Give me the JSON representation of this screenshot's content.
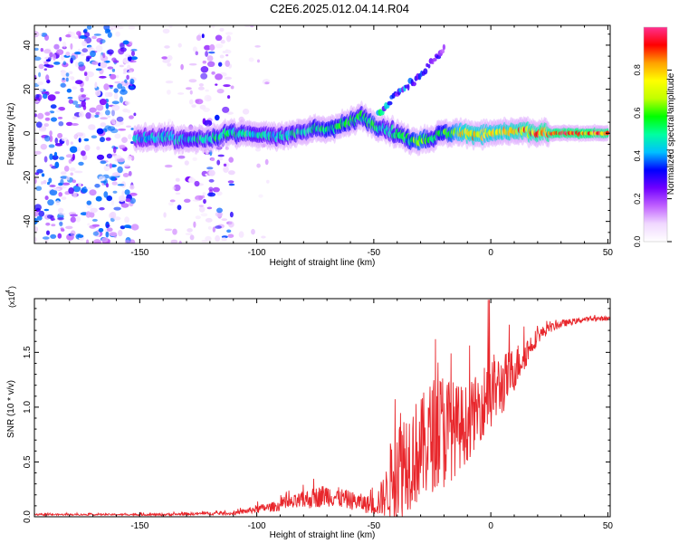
{
  "title": "C2E6.2025.012.04.14.R04",
  "colors": {
    "axis": "#000000",
    "snr_line": "#e8262b",
    "background": "#ffffff",
    "colormap": [
      "#ffffff",
      "#f0d8ff",
      "#c060ff",
      "#7000ff",
      "#0000ff",
      "#00c0ff",
      "#00ffa0",
      "#00ff00",
      "#c0ff00",
      "#ffff00",
      "#ffa000",
      "#ff0000",
      "#ff3090"
    ]
  },
  "chart_data": [
    {
      "type": "heatmap",
      "name": "spectrogram",
      "xlabel": "Height of straight line (km)",
      "ylabel": "Frequency (Hz)",
      "xlim": [
        -195,
        51
      ],
      "ylim": [
        -50,
        49
      ],
      "xticks": [
        -150,
        -100,
        -50,
        0,
        50
      ],
      "yticks": [
        -40,
        -20,
        0,
        20,
        40
      ],
      "xtick_labels": [
        "-150",
        "-100",
        "-50",
        "0",
        "50"
      ],
      "ytick_labels": [
        "-40",
        "-20",
        "0",
        "20",
        "40"
      ],
      "colorbar": {
        "label": "Normalized spectral amplitude",
        "range": [
          0.0,
          1.0
        ],
        "ticks": [
          0.0,
          0.2,
          0.4,
          0.6,
          0.8
        ],
        "tick_labels": [
          "0.0",
          "0.2",
          "0.4",
          "0.6",
          "0.8"
        ]
      },
      "ridge": {
        "description_units": "frequency (Hz) of main echo trace vs height (km)",
        "x": [
          -152,
          -140,
          -130,
          -120,
          -110,
          -100,
          -90,
          -80,
          -70,
          -60,
          -55,
          -50,
          -45,
          -40,
          -35,
          -30,
          -25,
          -20,
          -10,
          0,
          10,
          20,
          30,
          40,
          50
        ],
        "y": [
          -2,
          -2,
          -3,
          -2,
          0,
          -1,
          -1,
          1,
          2,
          5,
          8,
          4,
          2,
          0,
          -3,
          -3,
          -2,
          0,
          0,
          0,
          1,
          0,
          0,
          0,
          0
        ],
        "amplitude": [
          0.45,
          0.5,
          0.5,
          0.55,
          0.55,
          0.5,
          0.5,
          0.55,
          0.6,
          0.6,
          0.55,
          0.65,
          0.5,
          0.55,
          0.6,
          0.7,
          0.55,
          0.6,
          0.85,
          0.8,
          0.85,
          0.9,
          0.95,
          0.95,
          0.95
        ]
      },
      "branch": {
        "x": [
          -48,
          -45,
          -40,
          -35,
          -30,
          -25,
          -20
        ],
        "y": [
          8,
          12,
          18,
          22,
          26,
          32,
          38
        ],
        "amplitude": [
          0.5,
          0.4,
          0.35,
          0.4,
          0.35,
          0.3,
          0.25
        ]
      }
    },
    {
      "type": "line",
      "name": "snr",
      "xlabel": "Height of straight line (km)",
      "ylabel": "SNR (10 * v/v)",
      "scale_label": "(x10",
      "scale_exponent": "4",
      "xlim": [
        -195,
        51
      ],
      "ylim": [
        0.0,
        1.99
      ],
      "xticks": [
        -150,
        -100,
        -50,
        0,
        50
      ],
      "yticks": [
        0.0,
        0.5,
        1.0,
        1.5
      ],
      "xtick_labels": [
        "-150",
        "-100",
        "-50",
        "0",
        "50"
      ],
      "ytick_labels": [
        "0.0",
        "0.5",
        "1.0",
        "1.5"
      ],
      "envelope_x": [
        -195,
        -160,
        -140,
        -120,
        -110,
        -100,
        -90,
        -80,
        -70,
        -60,
        -50,
        -45,
        -40,
        -35,
        -30,
        -25,
        -20,
        -15,
        -10,
        -5,
        0,
        5,
        10,
        15,
        20,
        25,
        30,
        40,
        50
      ],
      "envelope_mean": [
        0.02,
        0.02,
        0.02,
        0.03,
        0.03,
        0.07,
        0.1,
        0.15,
        0.2,
        0.15,
        0.1,
        0.2,
        0.5,
        0.55,
        0.6,
        0.75,
        0.8,
        0.8,
        0.85,
        1.0,
        1.15,
        1.2,
        1.35,
        1.5,
        1.65,
        1.72,
        1.76,
        1.8,
        1.81
      ],
      "envelope_spread": [
        0.01,
        0.01,
        0.015,
        0.02,
        0.02,
        0.05,
        0.07,
        0.12,
        0.15,
        0.12,
        0.12,
        0.3,
        0.8,
        0.7,
        0.7,
        0.75,
        0.8,
        0.6,
        0.5,
        0.45,
        0.5,
        0.4,
        0.3,
        0.2,
        0.1,
        0.06,
        0.05,
        0.03,
        0.03
      ]
    }
  ]
}
